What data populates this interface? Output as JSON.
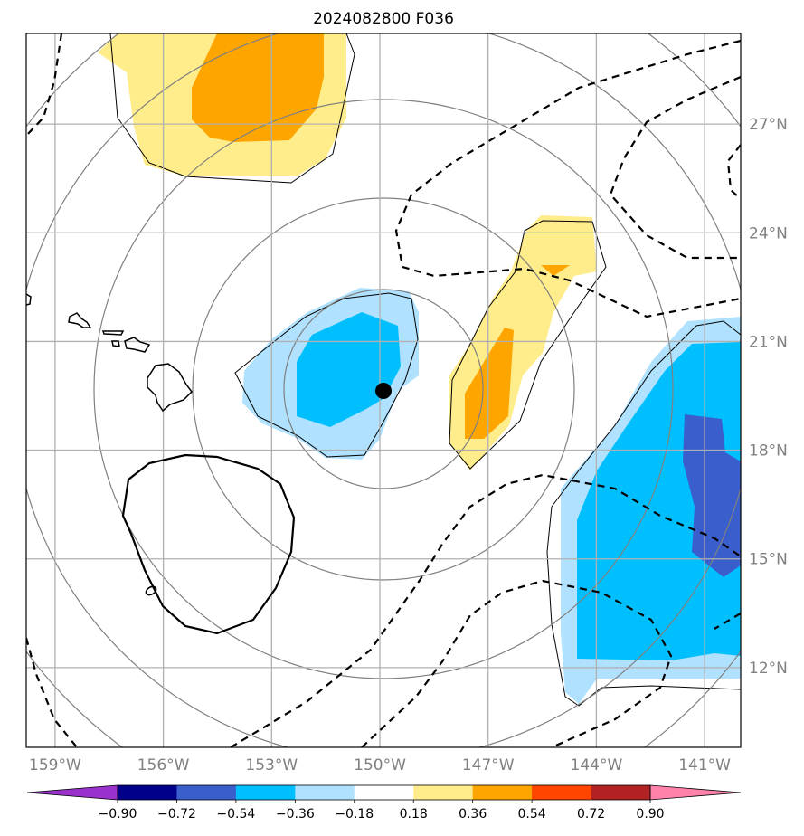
{
  "title": "2024082800 F036",
  "map": {
    "lon_range": [
      -159.8,
      -140.0
    ],
    "lat_range": [
      9.8,
      29.5
    ],
    "lon_ticks": [
      {
        "value": -159,
        "label": "159°W"
      },
      {
        "value": -156,
        "label": "156°W"
      },
      {
        "value": -153,
        "label": "153°W"
      },
      {
        "value": -150,
        "label": "150°W"
      },
      {
        "value": -147,
        "label": "147°W"
      },
      {
        "value": -144,
        "label": "144°W"
      },
      {
        "value": -141,
        "label": "141°W"
      }
    ],
    "lat_ticks": [
      {
        "value": 12,
        "label": "12°N"
      },
      {
        "value": 15,
        "label": "15°N"
      },
      {
        "value": 18,
        "label": "18°N"
      },
      {
        "value": 21,
        "label": "21°N"
      },
      {
        "value": 24,
        "label": "24°N"
      },
      {
        "value": 27,
        "label": "27°N"
      }
    ],
    "grid": true,
    "storm_center": {
      "lon": -149.5,
      "lat": 19.5
    },
    "range_rings_deg": [
      3,
      5.5,
      8.5,
      11.3,
      13.5
    ]
  },
  "colorbar": {
    "levels": [
      "−0.90",
      "−0.72",
      "−0.54",
      "−0.36",
      "−0.18",
      "0.18",
      "0.36",
      "0.54",
      "0.72",
      "0.90"
    ],
    "colors": [
      "#9932cc",
      "#00008b",
      "#3a5fcd",
      "#00bfff",
      "#b0e2ff",
      "#ffffff",
      "#ffec8b",
      "#ffa500",
      "#ff4500",
      "#b22222",
      "#ff82ab"
    ]
  }
}
